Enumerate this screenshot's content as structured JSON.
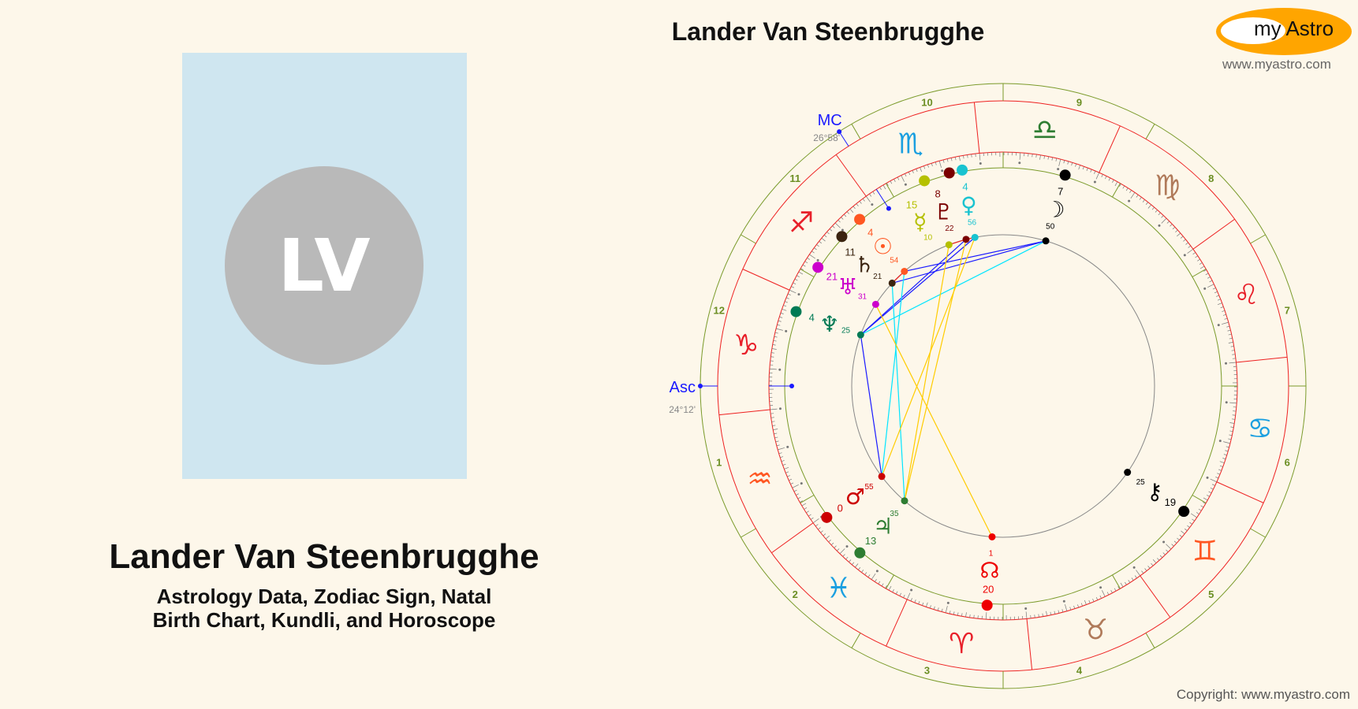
{
  "profile": {
    "initials": "LV",
    "name": "Lander Van Steenbrugghe",
    "subtitle_line1": "Astrology Data, Zodiac Sign, Natal",
    "subtitle_line2": "Birth Chart, Kundli, and Horoscope"
  },
  "chart_title": "Lander Van Steenbrugghe",
  "logo": {
    "text": "my Astro",
    "url": "www.myastro.com"
  },
  "copyright": "Copyright: www.myastro.com",
  "chart_data": {
    "type": "natal-wheel",
    "ascendant": {
      "label": "Asc",
      "longitude": 294.2,
      "text": "24°12'"
    },
    "midheaven": {
      "label": "MC",
      "longitude": 236.97,
      "text": "26°58'"
    },
    "houses": [
      "1",
      "2",
      "3",
      "4",
      "5",
      "6",
      "7",
      "8",
      "9",
      "10",
      "11",
      "12"
    ],
    "signs": [
      {
        "name": "Aries",
        "glyph": "♈",
        "color": "#e8202a"
      },
      {
        "name": "Taurus",
        "glyph": "♉",
        "color": "#b07a5a"
      },
      {
        "name": "Gemini",
        "glyph": "♊",
        "color": "#ff5722"
      },
      {
        "name": "Cancer",
        "glyph": "♋",
        "color": "#1a9fe0"
      },
      {
        "name": "Leo",
        "glyph": "♌",
        "color": "#e8202a"
      },
      {
        "name": "Virgo",
        "glyph": "♍",
        "color": "#b07a5a"
      },
      {
        "name": "Libra",
        "glyph": "♎",
        "color": "#2e7d32"
      },
      {
        "name": "Scorpio",
        "glyph": "♏",
        "color": "#1a9fe0"
      },
      {
        "name": "Sagittarius",
        "glyph": "♐",
        "color": "#e8202a"
      },
      {
        "name": "Capricorn",
        "glyph": "♑",
        "color": "#e8202a"
      },
      {
        "name": "Aquarius",
        "glyph": "♒",
        "color": "#ff5722"
      },
      {
        "name": "Pisces",
        "glyph": "♓",
        "color": "#1a9fe0"
      }
    ],
    "planets": [
      {
        "name": "sun",
        "glyph": "☉",
        "longitude": 244.9,
        "deg": "4",
        "min": "54",
        "color": "#ff5722"
      },
      {
        "name": "moon",
        "glyph": "☽",
        "longitude": 187.83,
        "deg": "7",
        "min": "50",
        "color": "#000000"
      },
      {
        "name": "mercury",
        "glyph": "☿",
        "longitude": 225.17,
        "deg": "15",
        "min": "10",
        "color": "#b5c000"
      },
      {
        "name": "venus",
        "glyph": "♀",
        "longitude": 214.93,
        "deg": "4",
        "min": "56",
        "color": "#19c3d0"
      },
      {
        "name": "mars",
        "glyph": "♂",
        "longitude": 330.92,
        "deg": "0",
        "min": "55",
        "color": "#cc0000"
      },
      {
        "name": "jupiter",
        "glyph": "♃",
        "longitude": 343.58,
        "deg": "13",
        "min": "35",
        "color": "#2e7d32"
      },
      {
        "name": "saturn",
        "glyph": "♄",
        "longitude": 251.35,
        "deg": "11",
        "min": "21",
        "color": "#3b2410"
      },
      {
        "name": "uranus",
        "glyph": "♅",
        "longitude": 261.52,
        "deg": "21",
        "min": "31",
        "color": "#cc00cc"
      },
      {
        "name": "neptune",
        "glyph": "♆",
        "longitude": 274.42,
        "deg": "4",
        "min": "25",
        "color": "#007a55"
      },
      {
        "name": "pluto",
        "glyph": "♇",
        "longitude": 218.37,
        "deg": "8",
        "min": "22",
        "color": "#7a0000"
      },
      {
        "name": "north-node",
        "glyph": "☊",
        "longitude": 20.02,
        "deg": "20",
        "min": "1",
        "color": "#ee0000"
      },
      {
        "name": "chiron",
        "glyph": "⚷",
        "longitude": 79.42,
        "deg": "19",
        "min": "25",
        "color": "#000000"
      }
    ],
    "aspects": [
      {
        "a": "moon",
        "b": "saturn",
        "type": "sextile"
      },
      {
        "a": "moon",
        "b": "sun",
        "type": "sextile"
      },
      {
        "a": "neptune",
        "b": "pluto",
        "type": "sextile"
      },
      {
        "a": "neptune",
        "b": "venus",
        "type": "sextile"
      },
      {
        "a": "neptune",
        "b": "mars",
        "type": "sextile"
      },
      {
        "a": "moon",
        "b": "neptune",
        "type": "square"
      },
      {
        "a": "sun",
        "b": "mars",
        "type": "square"
      },
      {
        "a": "saturn",
        "b": "jupiter",
        "type": "square"
      },
      {
        "a": "mercury",
        "b": "jupiter",
        "type": "trine"
      },
      {
        "a": "venus",
        "b": "mars",
        "type": "trine"
      },
      {
        "a": "pluto",
        "b": "jupiter",
        "type": "trine"
      },
      {
        "a": "uranus",
        "b": "north-node",
        "type": "trine"
      },
      {
        "a": "sun",
        "b": "saturn",
        "type": "conjunction"
      },
      {
        "a": "venus",
        "b": "pluto",
        "type": "conjunction"
      },
      {
        "a": "mercury",
        "b": "pluto",
        "type": "conjunction"
      }
    ],
    "aspect_colors": {
      "sextile": "#1a1aff",
      "square": "#00e5ff",
      "trine": "#ffcc00",
      "conjunction": "#ee2020"
    }
  }
}
